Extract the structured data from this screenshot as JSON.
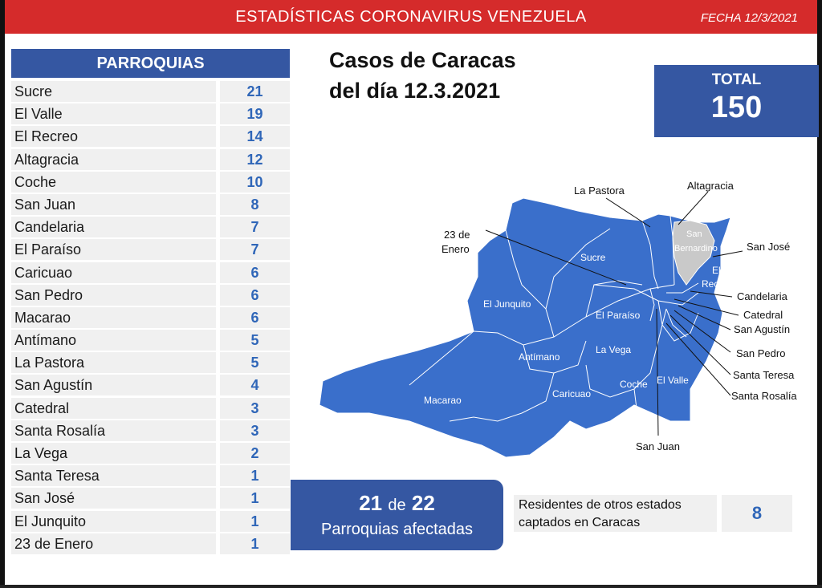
{
  "header": {
    "title": "ESTADÍSTICAS CORONAVIRUS VENEZUELA",
    "date": "FECHA 12/3/2021"
  },
  "table": {
    "heading": "PARROQUIAS",
    "rows": [
      {
        "name": "Sucre",
        "value": "21"
      },
      {
        "name": "El Valle",
        "value": "19"
      },
      {
        "name": "El Recreo",
        "value": "14"
      },
      {
        "name": "Altagracia",
        "value": "12"
      },
      {
        "name": "Coche",
        "value": "10"
      },
      {
        "name": "San Juan",
        "value": "8"
      },
      {
        "name": "Candelaria",
        "value": "7"
      },
      {
        "name": "El Paraíso",
        "value": "7"
      },
      {
        "name": "Caricuao",
        "value": "6"
      },
      {
        "name": "San Pedro",
        "value": "6"
      },
      {
        "name": "Macarao",
        "value": "6"
      },
      {
        "name": "Antímano",
        "value": "5"
      },
      {
        "name": "La Pastora",
        "value": "5"
      },
      {
        "name": "San Agustín",
        "value": "4"
      },
      {
        "name": "Catedral",
        "value": "3"
      },
      {
        "name": "Santa Rosalía",
        "value": "3"
      },
      {
        "name": "La Vega",
        "value": "2"
      },
      {
        "name": "Santa Teresa",
        "value": "1"
      },
      {
        "name": "San José",
        "value": "1"
      },
      {
        "name": "El Junquito",
        "value": "1"
      },
      {
        "name": "23 de Enero",
        "value": "1"
      }
    ]
  },
  "title": {
    "line1": "Casos de Caracas",
    "line2": "del día 12.3.2021"
  },
  "total": {
    "label": "TOTAL",
    "value": "150"
  },
  "map": {
    "inner_labels": {
      "el_junquito": "El Junquito",
      "sucre": "Sucre",
      "el_paraiso": "El Paraíso",
      "antimano": "Antímano",
      "la_vega": "La Vega",
      "macarao": "Macarao",
      "caricuao": "Caricuao",
      "coche": "Coche",
      "el_valle": "El Valle",
      "el_recreo_1": "El",
      "el_recreo_2": "Recreo",
      "san_bernardino_1": "San",
      "san_bernardino_2": "Bernardino"
    },
    "callouts": {
      "la_pastora": "La Pastora",
      "altagracia": "Altagracia",
      "enero_1": "23 de",
      "enero_2": "Enero",
      "san_jose": "San José",
      "candelaria": "Candelaria",
      "catedral": "Catedral",
      "san_agustin": "San Agustín",
      "san_pedro": "San Pedro",
      "santa_teresa": "Santa Teresa",
      "santa_rosalia": "Santa Rosalía",
      "san_juan": "San Juan"
    },
    "colors": {
      "fill": "#3a6fcb",
      "highlight": "#c9c9c9"
    }
  },
  "affected": {
    "count": "21",
    "connector": "de",
    "total": "22",
    "label": "Parroquias afectadas"
  },
  "residents": {
    "line1": "Residentes de otros estados",
    "line2": "captados en Caracas",
    "value": "8"
  }
}
